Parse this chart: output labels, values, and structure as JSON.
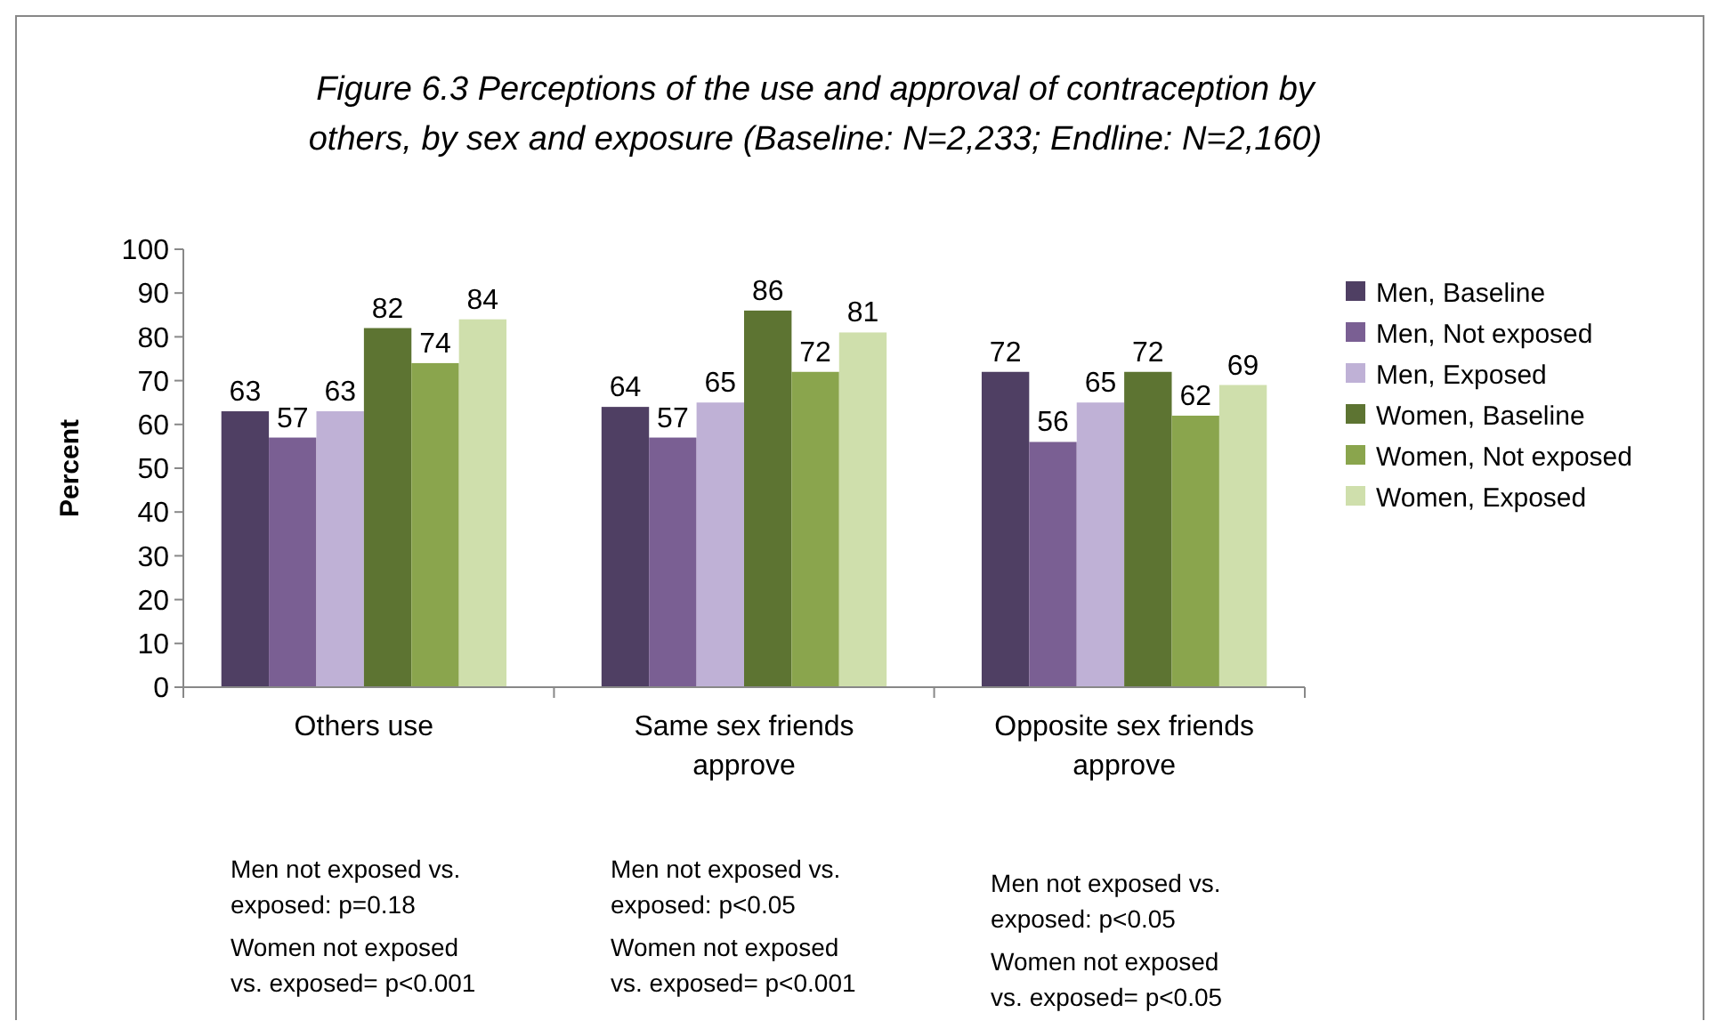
{
  "chart_data": {
    "type": "bar",
    "title": "Figure 6.3 Perceptions of the use and approval of contraception by others, by sex and exposure (Baseline: N=2,233; Endline: N=2,160)",
    "ylabel": "Percent",
    "categories": [
      "Others use",
      "Same sex friends approve",
      "Opposite sex friends approve"
    ],
    "series": [
      {
        "name": "Men, Baseline",
        "color": "#4f3f63",
        "values": [
          63,
          64,
          72
        ]
      },
      {
        "name": "Men, Not exposed",
        "color": "#7a5f93",
        "values": [
          57,
          57,
          56
        ]
      },
      {
        "name": "Men, Exposed",
        "color": "#bfb1d6",
        "values": [
          63,
          65,
          65
        ]
      },
      {
        "name": "Women, Baseline",
        "color": "#5d7432",
        "values": [
          82,
          86,
          72
        ]
      },
      {
        "name": "Women, Not exposed",
        "color": "#8aa54d",
        "values": [
          74,
          72,
          62
        ]
      },
      {
        "name": "Women, Exposed",
        "color": "#cfdfac",
        "values": [
          84,
          81,
          69
        ]
      }
    ],
    "ylim": [
      0,
      100
    ],
    "yticks": [
      0,
      10,
      20,
      30,
      40,
      50,
      60,
      70,
      80,
      90,
      100
    ],
    "data_labels": true,
    "legend": "right",
    "grid": false,
    "annotations": [
      "Men not exposed vs. exposed: p=0.18",
      "Women not exposed vs. exposed= p<0.001",
      "Men not exposed vs. exposed: p<0.05",
      "Women not exposed vs. exposed= p<0.001",
      "Men not exposed vs. exposed: p<0.05",
      "Women not exposed vs. exposed= p<0.05"
    ]
  }
}
